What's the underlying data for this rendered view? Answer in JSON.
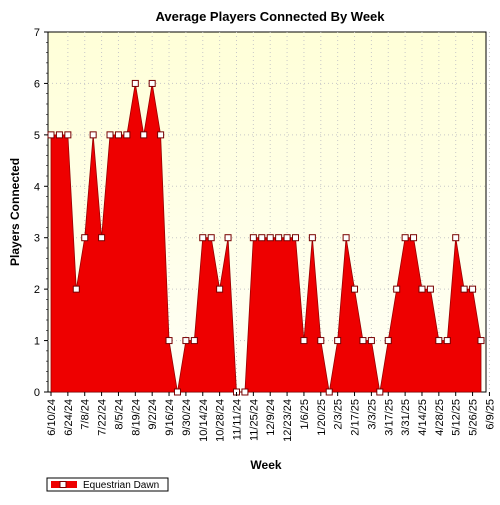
{
  "chart_data": {
    "type": "area",
    "title": "Average Players Connected By Week",
    "xlabel": "Week",
    "ylabel": "Players Connected",
    "ylim": [
      0,
      7
    ],
    "y_ticks": [
      0,
      1,
      2,
      3,
      4,
      5,
      6,
      7
    ],
    "grid": true,
    "legend_position": "bottom-left",
    "colors": {
      "fill": "#ee0000",
      "plot_bg_top": "#ffffd8",
      "plot_bg_bottom": "#fffff6"
    },
    "x_tick_labels": [
      "6/10/24",
      "6/24/24",
      "7/8/24",
      "7/22/24",
      "8/5/24",
      "8/19/24",
      "9/2/24",
      "9/16/24",
      "9/30/24",
      "10/14/24",
      "10/28/24",
      "11/11/24",
      "11/25/24",
      "12/9/24",
      "12/23/24",
      "1/6/25",
      "1/20/25",
      "2/3/25",
      "2/17/25",
      "3/3/25",
      "3/17/25",
      "3/31/25",
      "4/14/25",
      "4/28/25",
      "5/12/25",
      "5/26/25",
      "6/9/25"
    ],
    "series": [
      {
        "name": "Equestrian Dawn",
        "values": [
          5,
          5,
          5,
          2,
          3,
          5,
          3,
          5,
          5,
          5,
          6,
          5,
          6,
          5,
          1,
          0,
          1,
          1,
          3,
          3,
          2,
          3,
          0,
          0,
          3,
          3,
          3,
          3,
          3,
          3,
          1,
          3,
          1,
          0,
          1,
          3,
          2,
          1,
          1,
          0,
          1,
          2,
          3,
          3,
          2,
          2,
          1,
          1,
          3,
          2,
          2,
          1
        ]
      }
    ]
  }
}
